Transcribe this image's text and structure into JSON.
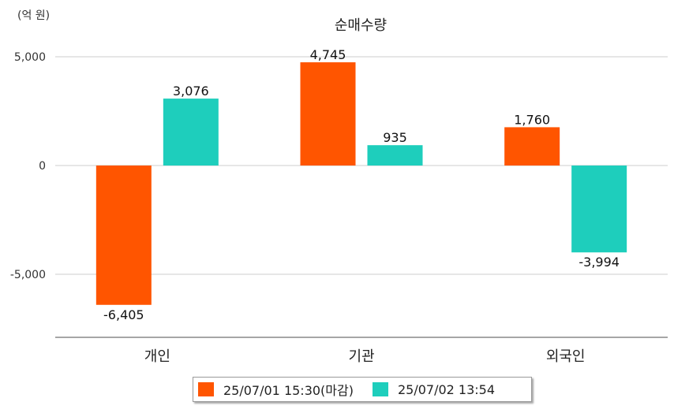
{
  "unit_label": "(억 원)",
  "colors": {
    "series1": "#ff5500",
    "series2": "#1ecebc",
    "grid": "#cccccc",
    "axis": "#888888"
  },
  "chart_data": {
    "type": "bar",
    "title": "순매수량",
    "categories": [
      "개인",
      "기관",
      "외국인"
    ],
    "series": [
      {
        "name": "25/07/01 15:30(마감)",
        "values": [
          -6405,
          4745,
          1760
        ],
        "labels": [
          "-6,405",
          "4,745",
          "1,760"
        ]
      },
      {
        "name": "25/07/02 13:54",
        "values": [
          3076,
          935,
          -3994
        ],
        "labels": [
          "3,076",
          "935",
          "-3,994"
        ]
      }
    ],
    "yticks": [
      5000,
      0,
      -5000
    ],
    "ytick_labels": [
      "5,000",
      "0",
      "-5,000"
    ],
    "ylim": [
      -7900,
      5200
    ],
    "grid": true,
    "legend": "bottom"
  }
}
